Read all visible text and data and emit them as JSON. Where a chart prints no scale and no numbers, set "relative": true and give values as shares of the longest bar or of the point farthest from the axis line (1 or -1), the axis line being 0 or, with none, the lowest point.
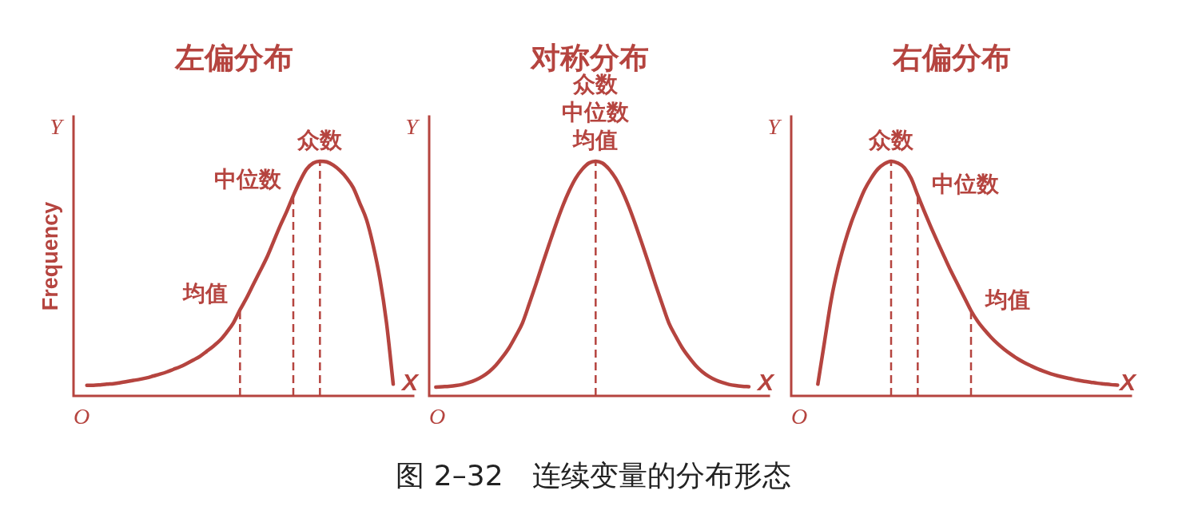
{
  "chart_data": [
    {
      "type": "line",
      "title": "左偏分布",
      "xlabel": "X",
      "ylabel": "Frequency",
      "relative": true,
      "color": "#b5443f",
      "annotations": [
        "Y",
        "O",
        "均值",
        "中位数",
        {
          "text": "众数",
          "y": 1
        }
      ],
      "categories": [
        null,
        null,
        null,
        null,
        null,
        null,
        null,
        null,
        null,
        null,
        null,
        null,
        null,
        null,
        null,
        null,
        null,
        null,
        null,
        null,
        null,
        null,
        null,
        null,
        null,
        null,
        null,
        null,
        null,
        null,
        null,
        null,
        null,
        null,
        null,
        null,
        null,
        null,
        null,
        null,
        null,
        null,
        null,
        null,
        null,
        null,
        null,
        null,
        null,
        null,
        null,
        null
      ],
      "values": [
        null,
        null,
        0.045,
        0.045,
        0.047,
        0.05,
        0.052,
        0.056,
        0.061,
        0.066,
        0.071,
        0.077,
        0.085,
        0.093,
        0.102,
        0.113,
        0.124,
        0.138,
        0.153,
        0.169,
        0.19,
        0.212,
        0.237,
        0.271,
        0.311,
        0.367,
        0.418,
        0.475,
        0.531,
        0.588,
        0.655,
        0.723,
        0.785,
        0.853,
        0.915,
        0.966,
        0.992,
        1,
        0.997,
        0.983,
        0.96,
        0.929,
        0.887,
        0.82,
        0.75,
        0.64,
        0.5,
        0.31,
        0.05,
        null,
        null,
        null
      ]
    },
    {
      "type": "line",
      "title": "对称分布",
      "xlabel": "X",
      "relative": true,
      "color": "#b5443f",
      "annotations": [
        "Y",
        "O",
        "图 2–32　连续变量的分布形态",
        {
          "text": "众数",
          "y": 1
        },
        {
          "text": "中位数",
          "y": 1
        },
        {
          "text": "均值",
          "y": 1
        }
      ],
      "categories": [
        null,
        null,
        null,
        null,
        null,
        null,
        null,
        null,
        null,
        null,
        null,
        null,
        null,
        null,
        null,
        null,
        null,
        null,
        null,
        null,
        null,
        null,
        null,
        null,
        null,
        null,
        null,
        null,
        null,
        null,
        null,
        null,
        null,
        null,
        null,
        null,
        null,
        null,
        null,
        null,
        null,
        null,
        null,
        null,
        null,
        null,
        null,
        null,
        null,
        null,
        null,
        null
      ],
      "values": [
        null,
        0.037,
        0.039,
        0.041,
        0.044,
        0.049,
        0.057,
        0.068,
        0.083,
        0.103,
        0.13,
        0.165,
        0.205,
        0.255,
        0.31,
        0.39,
        0.473,
        0.56,
        0.645,
        0.728,
        0.805,
        0.872,
        0.927,
        0.966,
        0.992,
        1,
        0.992,
        0.966,
        0.927,
        0.872,
        0.805,
        0.728,
        0.645,
        0.56,
        0.473,
        0.39,
        0.31,
        0.255,
        0.205,
        0.165,
        0.13,
        0.103,
        0.083,
        0.068,
        0.057,
        0.049,
        0.044,
        0.041,
        0.039,
        null,
        null,
        null
      ]
    },
    {
      "type": "line",
      "title": "右偏分布",
      "xlabel": "X",
      "relative": true,
      "color": "#b5443f",
      "annotations": [
        "Y",
        "O",
        {
          "text": "众数",
          "y": 1
        },
        "中位数",
        "均值"
      ],
      "categories": [
        null,
        null,
        null,
        null,
        null,
        null,
        null,
        null,
        null,
        null,
        null,
        null,
        null,
        null,
        null,
        null,
        null,
        null,
        null,
        null,
        null,
        null,
        null,
        null,
        null,
        null,
        null,
        null,
        null,
        null,
        null,
        null,
        null,
        null,
        null,
        null,
        null,
        null,
        null,
        null,
        null,
        null,
        null,
        null,
        null,
        null,
        null,
        null,
        null,
        null,
        null,
        null
      ],
      "values": [
        null,
        null,
        null,
        null,
        0.05,
        0.23,
        0.408,
        0.542,
        0.648,
        0.737,
        0.81,
        0.877,
        0.927,
        0.966,
        0.989,
        1,
        0.992,
        0.972,
        0.927,
        0.855,
        0.785,
        0.718,
        0.654,
        0.592,
        0.531,
        0.475,
        0.419,
        0.363,
        0.318,
        0.282,
        0.25,
        0.222,
        0.198,
        0.177,
        0.158,
        0.142,
        0.128,
        0.115,
        0.104,
        0.094,
        0.086,
        0.079,
        0.073,
        0.067,
        0.062,
        0.058,
        0.054,
        0.051,
        0.048,
        0.046,
        null,
        null
      ]
    }
  ]
}
